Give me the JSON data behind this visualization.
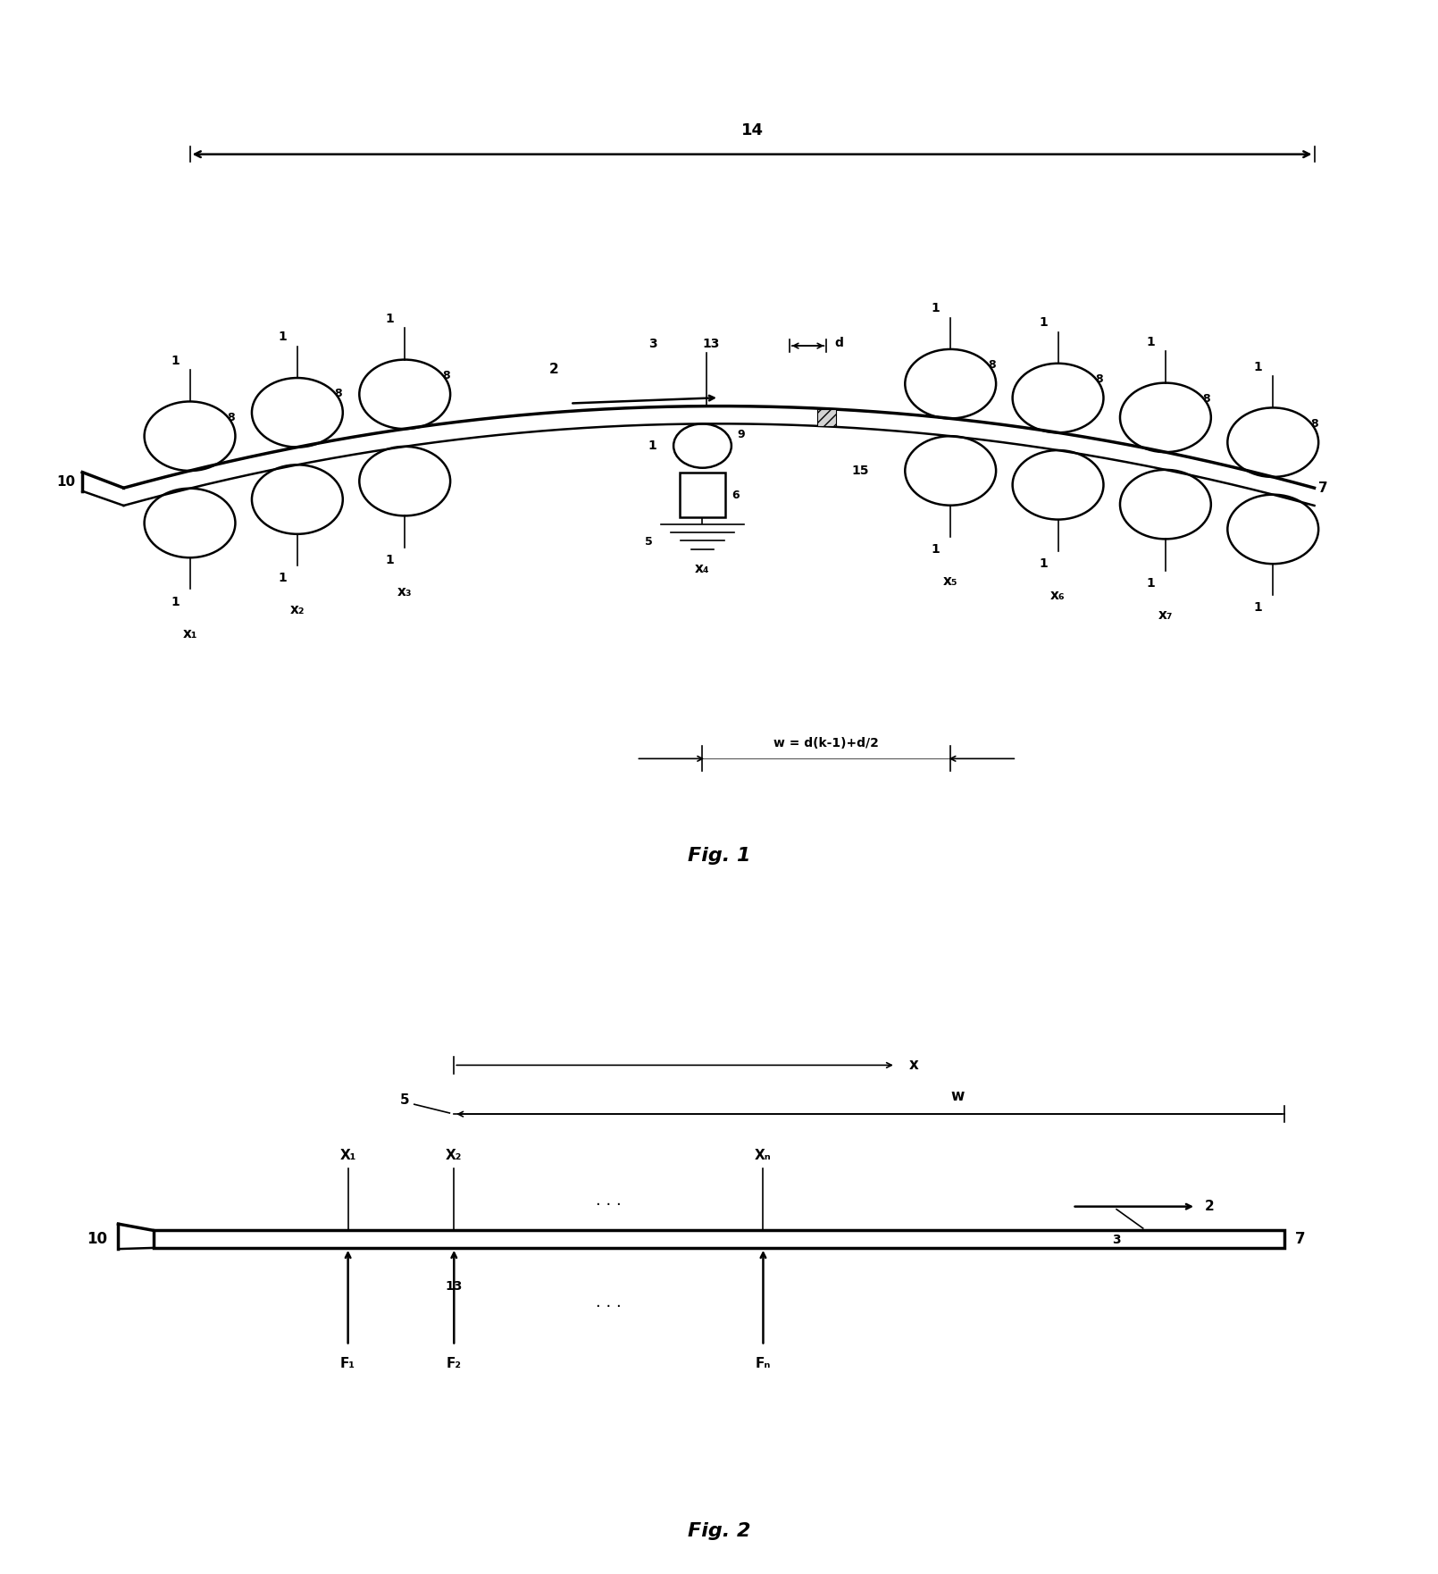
{
  "fig1_title": "Fig. 1",
  "fig2_title": "Fig. 2",
  "background_color": "#ffffff",
  "line_color": "#000000",
  "fig1_x_labels": [
    "x₁",
    "x₂",
    "x₃",
    "x₄",
    "x₅",
    "x₆",
    "x₇"
  ],
  "fig2_x_labels": [
    "X₁",
    "X₂",
    "Xₙ"
  ],
  "fig2_f_labels": [
    "F₁",
    "F₂",
    "Fₙ"
  ]
}
